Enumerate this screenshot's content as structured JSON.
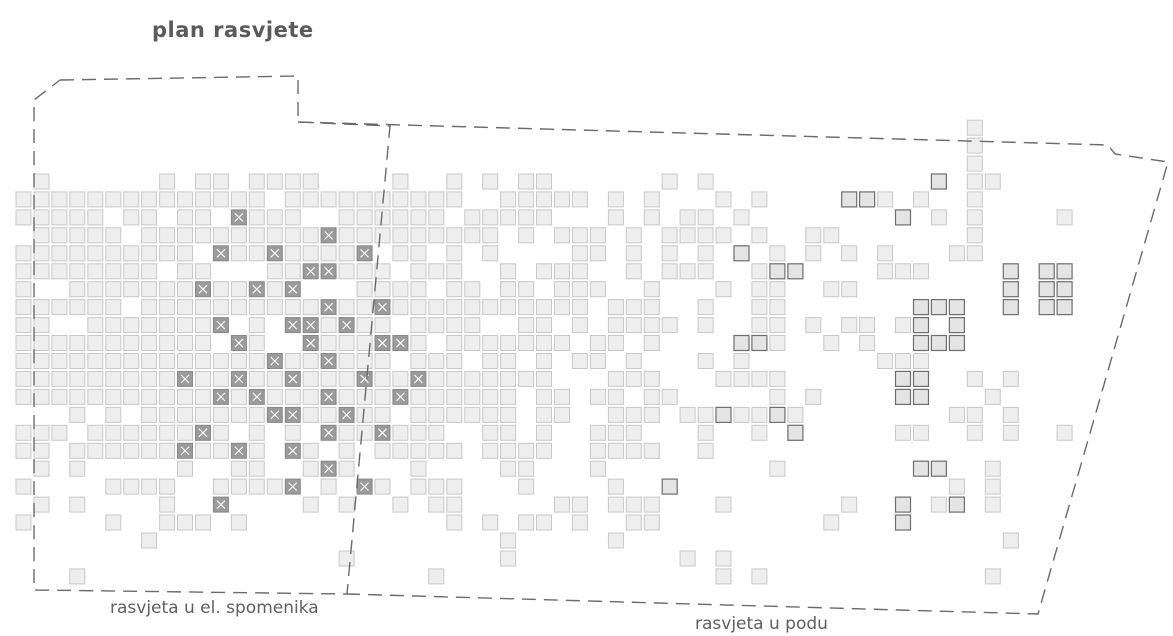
{
  "title": "plan rasvjete",
  "zones": [
    {
      "id": "zone-left",
      "label": "rasvjeta u el. spomenika"
    },
    {
      "id": "zone-right",
      "label": "rasvjeta u podu"
    }
  ],
  "legend_meaning": {
    "light": "floor tile / paving",
    "x": "luminaire in monument element",
    "dark": "floor-embedded luminaire"
  },
  "colors": {
    "tile_fill": "#eeeeee",
    "tile_stroke": "#c8c8c8",
    "x_fill": "#9b9b9b",
    "x_mark": "#ffffff",
    "dark_fill": "#e4e4e4",
    "dark_stroke": "#6e6e6e",
    "boundary": "#6a6a6a",
    "text": "#5f5f5f"
  }
}
